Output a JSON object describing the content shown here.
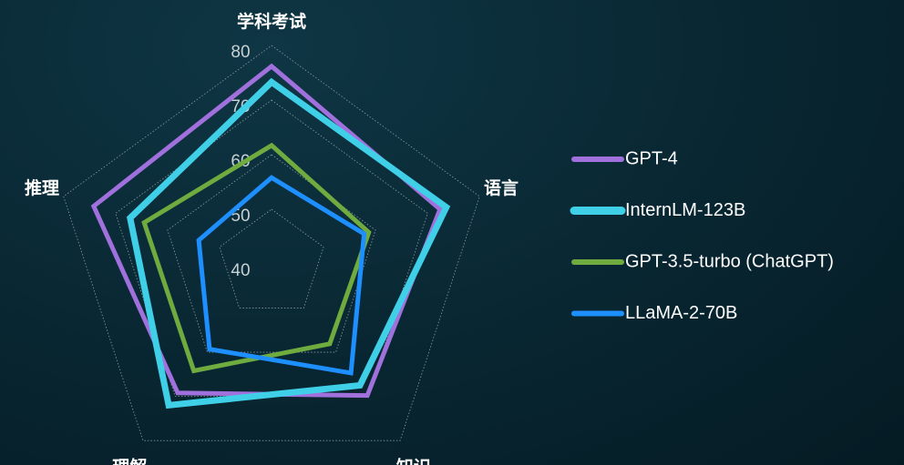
{
  "chart_data": {
    "type": "radar",
    "categories": [
      "学科考试",
      "语言",
      "知识",
      "理解",
      "推理"
    ],
    "ylim": [
      40,
      80
    ],
    "yticks": [
      40,
      50,
      60,
      70,
      80
    ],
    "grid": true,
    "legend": "right",
    "series": [
      {
        "name": "GPT-4",
        "color": "#a070dc",
        "values": [
          76.2,
          72.4,
          69.8,
          69.2,
          74.2
        ]
      },
      {
        "name": "InternLM-123B",
        "color": "#3fd0e8",
        "values": [
          73.3,
          73.6,
          67.5,
          72.0,
          67.2
        ]
      },
      {
        "name": "GPT-3.5-turbo (ChatGPT)",
        "color": "#6fab3f",
        "values": [
          61.7,
          58.7,
          58.1,
          64.2,
          64.5
        ]
      },
      {
        "name": "LLaMA-2-70B",
        "color": "#1e8fff",
        "values": [
          55.8,
          57.8,
          64.7,
          59.3,
          54.0
        ]
      }
    ]
  }
}
